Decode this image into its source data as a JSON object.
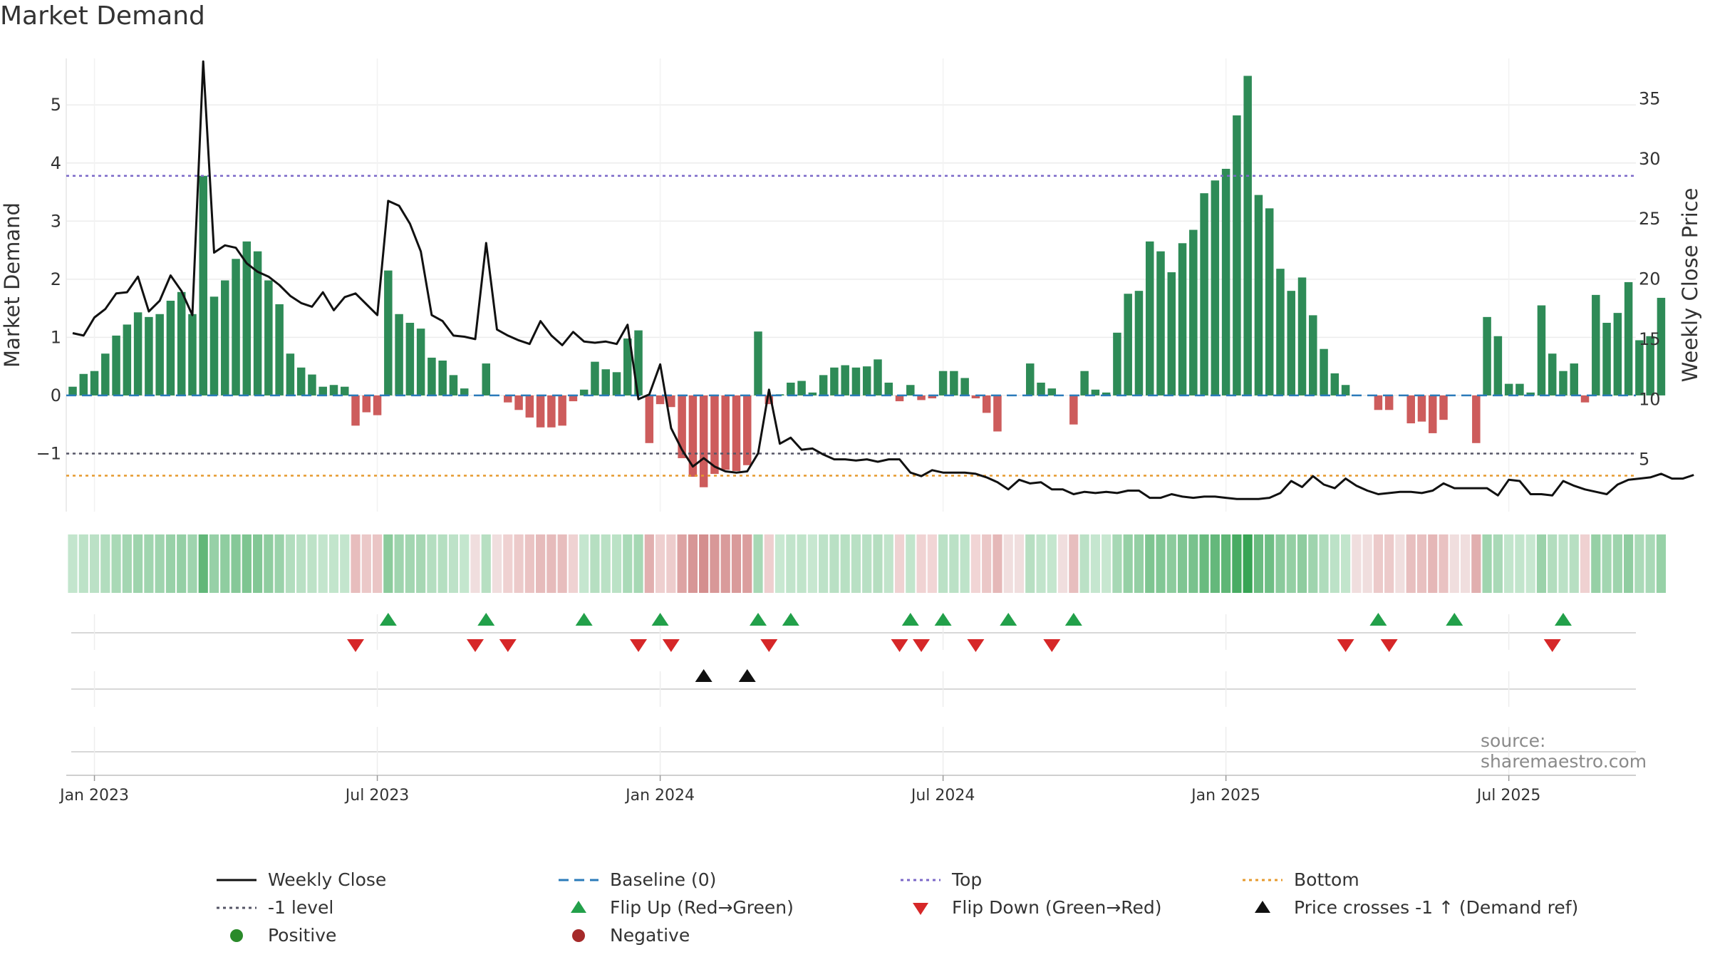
{
  "title": "Market Demand",
  "source": "source: sharemaestro.com",
  "colors": {
    "positive_bar": "#2e8b57",
    "negative_bar": "#cd5c5c",
    "close_line": "#111111",
    "baseline": "#2b7bba",
    "top_line": "#7b68c8",
    "bottom_line": "#e69a2e",
    "minus1_line": "#555566",
    "flip_up": "#22a04a",
    "flip_down": "#d62728",
    "price_cross": "#111111",
    "positive_dot": "#2a8a2a",
    "negative_dot": "#a52a2a"
  },
  "legend": [
    {
      "label": "Weekly Close",
      "key": "close"
    },
    {
      "label": "Baseline (0)",
      "key": "baseline"
    },
    {
      "label": "Top",
      "key": "top"
    },
    {
      "label": "Bottom",
      "key": "bottom"
    },
    {
      "label": "-1 level",
      "key": "minus1"
    },
    {
      "label": "Flip Up (Red→Green)",
      "key": "flipup"
    },
    {
      "label": "Flip Down (Green→Red)",
      "key": "flipdown"
    },
    {
      "label": "Price crosses -1 ↑ (Demand ref)",
      "key": "cross"
    },
    {
      "label": "Positive",
      "key": "positive"
    },
    {
      "label": "Negative",
      "key": "negative"
    }
  ],
  "chart_data": {
    "type": "bar",
    "title": "Market Demand",
    "ylabel": "Market Demand",
    "y2label": "Weekly Close Price",
    "ylim": [
      -2.0,
      5.8
    ],
    "y2lim": [
      0.65,
      38.35
    ],
    "yticks": [
      {
        "value": 5,
        "label": "5"
      },
      {
        "value": 4,
        "label": "4"
      },
      {
        "value": 3,
        "label": "3"
      },
      {
        "value": 2,
        "label": "2"
      },
      {
        "value": 1,
        "label": "1"
      },
      {
        "value": 0,
        "label": "0"
      },
      {
        "value": -1,
        "label": "−1"
      }
    ],
    "y2ticks": [
      {
        "value": 35,
        "label": "35"
      },
      {
        "value": 30,
        "label": "30"
      },
      {
        "value": 25,
        "label": "25"
      },
      {
        "value": 20,
        "label": "20"
      },
      {
        "value": 15,
        "label": "15"
      },
      {
        "value": 10,
        "label": "10"
      },
      {
        "value": 5,
        "label": "5"
      }
    ],
    "date_ticks": [
      {
        "label": "Jan 2023",
        "week": 2
      },
      {
        "label": "Jul 2023",
        "week": 28
      },
      {
        "label": "Jan 2024",
        "week": 54
      },
      {
        "label": "Jul 2024",
        "week": 80
      },
      {
        "label": "Jan 2025",
        "week": 106
      },
      {
        "label": "Jul 2025",
        "week": 132
      }
    ],
    "reference_levels": {
      "top": 3.78,
      "bottom": -1.38,
      "minus1": -1.0,
      "baseline": 0
    },
    "demand": [
      0.15,
      0.37,
      0.42,
      0.72,
      1.03,
      1.22,
      1.43,
      1.35,
      1.4,
      1.63,
      1.78,
      1.4,
      3.78,
      1.7,
      1.98,
      2.35,
      2.65,
      2.48,
      1.98,
      1.57,
      0.72,
      0.48,
      0.36,
      0.15,
      0.18,
      0.15,
      -0.52,
      -0.29,
      -0.34,
      2.15,
      1.4,
      1.25,
      1.15,
      0.65,
      0.6,
      0.35,
      0.12,
      0.0,
      0.55,
      0.0,
      -0.12,
      -0.25,
      -0.38,
      -0.55,
      -0.55,
      -0.52,
      -0.1,
      0.1,
      0.58,
      0.45,
      0.4,
      0.98,
      1.12,
      -0.82,
      -0.15,
      -0.2,
      -1.08,
      -1.4,
      -1.58,
      -1.35,
      -1.28,
      -1.3,
      -1.2,
      1.1,
      -0.15,
      0.02,
      0.22,
      0.25,
      0.05,
      0.35,
      0.48,
      0.52,
      0.48,
      0.5,
      0.62,
      0.22,
      -0.1,
      0.18,
      -0.08,
      -0.05,
      0.42,
      0.42,
      0.3,
      -0.05,
      -0.3,
      -0.62,
      0.0,
      0.0,
      0.55,
      0.22,
      0.12,
      0.0,
      -0.5,
      0.42,
      0.1,
      0.05,
      1.08,
      1.75,
      1.8,
      2.65,
      2.48,
      2.12,
      2.62,
      2.85,
      3.48,
      3.7,
      3.9,
      4.82,
      5.5,
      3.45,
      3.22,
      2.18,
      1.8,
      2.03,
      1.38,
      0.8,
      0.38,
      0.18,
      0.0,
      0.0,
      -0.25,
      -0.25,
      0.0,
      -0.48,
      -0.45,
      -0.65,
      -0.42,
      0.0,
      0.0,
      -0.82,
      1.35,
      1.02,
      0.2,
      0.2,
      0.05,
      1.55,
      0.72,
      0.42,
      0.55,
      -0.12,
      1.73,
      1.25,
      1.42,
      1.95,
      0.95,
      1.02,
      1.68
    ],
    "weekly_close": [
      15.5,
      15.3,
      16.8,
      17.5,
      18.8,
      18.9,
      20.2,
      17.3,
      18.2,
      20.3,
      19.0,
      17.0,
      38.1,
      22.2,
      22.8,
      22.6,
      21.3,
      20.6,
      20.2,
      19.5,
      18.6,
      18.0,
      17.7,
      18.9,
      17.4,
      18.5,
      18.8,
      17.9,
      17.0,
      26.5,
      26.1,
      24.6,
      22.3,
      17.0,
      16.5,
      15.3,
      15.2,
      15.0,
      23.0,
      15.8,
      15.3,
      14.9,
      14.6,
      16.5,
      15.3,
      14.5,
      15.6,
      14.8,
      14.7,
      14.8,
      14.6,
      16.2,
      10.0,
      10.4,
      12.9,
      7.6,
      5.8,
      4.4,
      5.1,
      4.4,
      4.0,
      3.9,
      4.0,
      5.5,
      10.8,
      6.3,
      6.8,
      5.8,
      5.9,
      5.4,
      5.0,
      5.0,
      4.9,
      5.0,
      4.8,
      5.0,
      5.0,
      3.9,
      3.6,
      4.1,
      3.9,
      3.9,
      3.9,
      3.8,
      3.5,
      3.1,
      2.5,
      3.3,
      3.0,
      3.1,
      2.5,
      2.5,
      2.1,
      2.3,
      2.2,
      2.3,
      2.2,
      2.4,
      2.4,
      1.8,
      1.8,
      2.1,
      1.9,
      1.8,
      1.9,
      1.9,
      1.8,
      1.7,
      1.7,
      1.7,
      1.8,
      2.2,
      3.2,
      2.7,
      3.6,
      2.9,
      2.6,
      3.4,
      2.8,
      2.4,
      2.1,
      2.2,
      2.3,
      2.3,
      2.2,
      2.4,
      3.0,
      2.6,
      2.6,
      2.6,
      2.6,
      2.0,
      3.3,
      3.2,
      2.1,
      2.1,
      2.0,
      3.2,
      2.8,
      2.5,
      2.3,
      2.1,
      2.9,
      3.3,
      3.4,
      3.5,
      3.8,
      3.4,
      3.4,
      3.7
    ],
    "flip_up_weeks": [
      29,
      38,
      47,
      54,
      63,
      66,
      77,
      80,
      86,
      92,
      120,
      127,
      137
    ],
    "flip_down_weeks": [
      26,
      37,
      40,
      52,
      55,
      64,
      76,
      78,
      83,
      90,
      117,
      121,
      136
    ],
    "price_cross_weeks": [
      58,
      62
    ]
  }
}
